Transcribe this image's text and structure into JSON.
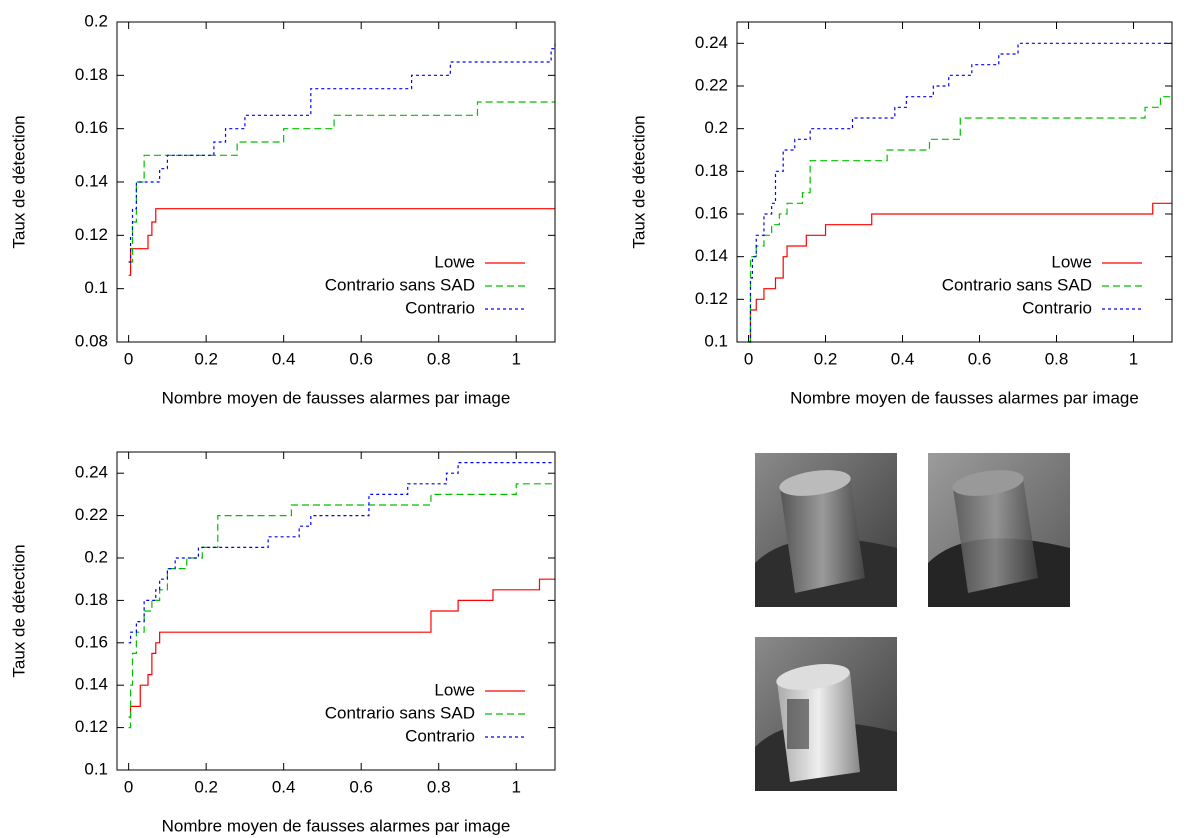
{
  "chart_data": [
    {
      "type": "line",
      "step": true,
      "xlabel": "Nombre moyen de fausses alarmes par image",
      "ylabel": "Taux de détection",
      "xlim": [
        -0.03,
        1.1
      ],
      "ylim": [
        0.08,
        0.2
      ],
      "xticks": [
        0,
        0.2,
        0.4,
        0.6,
        0.8,
        1
      ],
      "yticks": [
        0.08,
        0.1,
        0.12,
        0.14,
        0.16,
        0.18,
        0.2
      ],
      "legend": "lower right",
      "series": [
        {
          "name": "Lowe",
          "color": "#ff0000",
          "dash": "solid",
          "x": [
            0,
            0.005,
            0.05,
            0.06,
            0.07,
            1.1
          ],
          "values": [
            0.105,
            0.115,
            0.12,
            0.125,
            0.13,
            0.13
          ]
        },
        {
          "name": "Contrario sans SAD",
          "color": "#00c000",
          "dash": "dashed",
          "x": [
            0,
            0.01,
            0.02,
            0.04,
            0.28,
            0.4,
            0.53,
            0.9,
            1.1
          ],
          "values": [
            0.11,
            0.125,
            0.14,
            0.15,
            0.155,
            0.16,
            0.165,
            0.17,
            0.17
          ]
        },
        {
          "name": "Contrario",
          "color": "#0000ff",
          "dash": "dotted",
          "x": [
            0,
            0.005,
            0.01,
            0.02,
            0.08,
            0.1,
            0.22,
            0.25,
            0.3,
            0.47,
            0.73,
            0.83,
            1.09,
            1.1
          ],
          "values": [
            0.11,
            0.12,
            0.13,
            0.14,
            0.145,
            0.15,
            0.155,
            0.16,
            0.165,
            0.175,
            0.18,
            0.185,
            0.19,
            0.193
          ]
        }
      ]
    },
    {
      "type": "line",
      "step": true,
      "xlabel": "Nombre moyen de fausses alarmes par image",
      "ylabel": "Taux de détection",
      "xlim": [
        -0.03,
        1.1
      ],
      "ylim": [
        0.1,
        0.25
      ],
      "xticks": [
        0,
        0.2,
        0.4,
        0.6,
        0.8,
        1
      ],
      "yticks": [
        0.1,
        0.12,
        0.14,
        0.16,
        0.18,
        0.2,
        0.22,
        0.24
      ],
      "legend": "lower right",
      "series": [
        {
          "name": "Lowe",
          "color": "#ff0000",
          "dash": "solid",
          "x": [
            0,
            0.005,
            0.02,
            0.04,
            0.07,
            0.09,
            0.1,
            0.15,
            0.2,
            0.32,
            1.05,
            1.1
          ],
          "values": [
            0.1,
            0.115,
            0.12,
            0.125,
            0.13,
            0.14,
            0.145,
            0.15,
            0.155,
            0.16,
            0.165,
            0.165
          ]
        },
        {
          "name": "Contrario sans SAD",
          "color": "#00c000",
          "dash": "dashed",
          "x": [
            0,
            0.005,
            0.02,
            0.04,
            0.06,
            0.08,
            0.1,
            0.14,
            0.16,
            0.36,
            0.47,
            0.55,
            0.9,
            1.03,
            1.07,
            1.1
          ],
          "values": [
            0.1,
            0.14,
            0.145,
            0.15,
            0.155,
            0.16,
            0.165,
            0.17,
            0.185,
            0.19,
            0.195,
            0.205,
            0.205,
            0.21,
            0.215,
            0.215
          ]
        },
        {
          "name": "Contrario",
          "color": "#0000ff",
          "dash": "dotted",
          "x": [
            0,
            0.005,
            0.01,
            0.02,
            0.04,
            0.06,
            0.07,
            0.09,
            0.12,
            0.16,
            0.27,
            0.38,
            0.41,
            0.48,
            0.52,
            0.58,
            0.65,
            0.7,
            1.1
          ],
          "values": [
            0.1,
            0.13,
            0.14,
            0.15,
            0.16,
            0.165,
            0.18,
            0.19,
            0.195,
            0.2,
            0.205,
            0.21,
            0.215,
            0.22,
            0.225,
            0.23,
            0.235,
            0.24,
            0.24
          ]
        }
      ]
    },
    {
      "type": "line",
      "step": true,
      "xlabel": "Nombre moyen de fausses alarmes par image",
      "ylabel": "Taux de détection",
      "xlim": [
        -0.03,
        1.1
      ],
      "ylim": [
        0.1,
        0.25
      ],
      "xticks": [
        0,
        0.2,
        0.4,
        0.6,
        0.8,
        1
      ],
      "yticks": [
        0.1,
        0.12,
        0.14,
        0.16,
        0.18,
        0.2,
        0.22,
        0.24
      ],
      "legend": "lower right",
      "series": [
        {
          "name": "Lowe",
          "color": "#ff0000",
          "dash": "solid",
          "x": [
            0,
            0.005,
            0.03,
            0.05,
            0.06,
            0.07,
            0.08,
            0.78,
            0.85,
            0.94,
            1.06,
            1.1
          ],
          "values": [
            0.125,
            0.13,
            0.14,
            0.145,
            0.155,
            0.16,
            0.165,
            0.175,
            0.18,
            0.185,
            0.19,
            0.19
          ]
        },
        {
          "name": "Contrario sans SAD",
          "color": "#00c000",
          "dash": "dashed",
          "x": [
            0,
            0.005,
            0.01,
            0.02,
            0.04,
            0.06,
            0.08,
            0.1,
            0.15,
            0.19,
            0.23,
            0.35,
            0.42,
            0.75,
            0.78,
            1.0,
            1.1
          ],
          "values": [
            0.12,
            0.14,
            0.155,
            0.165,
            0.175,
            0.18,
            0.185,
            0.195,
            0.2,
            0.205,
            0.22,
            0.22,
            0.225,
            0.225,
            0.23,
            0.235,
            0.235
          ]
        },
        {
          "name": "Contrario",
          "color": "#0000ff",
          "dash": "dotted",
          "x": [
            0,
            0.005,
            0.02,
            0.04,
            0.07,
            0.08,
            0.1,
            0.12,
            0.18,
            0.36,
            0.44,
            0.47,
            0.62,
            0.72,
            0.82,
            0.85,
            1.1
          ],
          "values": [
            0.16,
            0.165,
            0.17,
            0.18,
            0.185,
            0.19,
            0.195,
            0.2,
            0.205,
            0.21,
            0.215,
            0.22,
            0.23,
            0.235,
            0.24,
            0.245,
            0.245
          ]
        }
      ]
    }
  ]
}
